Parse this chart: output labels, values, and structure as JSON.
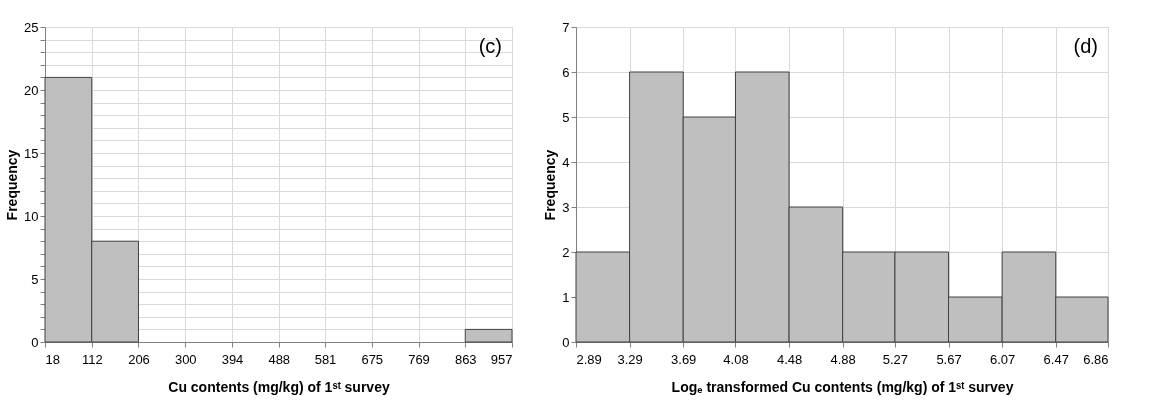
{
  "chart_data": [
    {
      "type": "histogram",
      "xlabel": "Cu contents (mg/kg) of 1ˢᵗ survey",
      "ylabel": "Frequency",
      "annotations": [
        "(c)"
      ],
      "bins": [
        18,
        112,
        206,
        300,
        394,
        488,
        581,
        675,
        769,
        863,
        957
      ],
      "values": [
        21,
        8,
        0,
        0,
        0,
        0,
        0,
        0,
        0,
        1
      ],
      "color": "#bfbfbf",
      "xlim": [
        18,
        957
      ],
      "xticks": [
        18,
        112,
        206,
        300,
        394,
        488,
        581,
        675,
        769,
        863,
        957
      ],
      "ylim": [
        0,
        25
      ],
      "yticks": [
        0,
        {
          "value": 1,
          "label": null
        },
        {
          "value": 2,
          "label": null
        },
        {
          "value": 3,
          "label": null
        },
        {
          "value": 4,
          "label": null
        },
        5,
        {
          "value": 6,
          "label": null
        },
        {
          "value": 7,
          "label": null
        },
        {
          "value": 8,
          "label": null
        },
        {
          "value": 9,
          "label": null
        },
        10,
        {
          "value": 11,
          "label": null
        },
        {
          "value": 12,
          "label": null
        },
        {
          "value": 13,
          "label": null
        },
        {
          "value": 14,
          "label": null
        },
        15,
        {
          "value": 16,
          "label": null
        },
        {
          "value": 17,
          "label": null
        },
        {
          "value": 18,
          "label": null
        },
        {
          "value": 19,
          "label": null
        },
        20,
        {
          "value": 21,
          "label": null
        },
        {
          "value": 22,
          "label": null
        },
        {
          "value": 23,
          "label": null
        },
        {
          "value": 24,
          "label": null
        },
        25
      ],
      "grid": true,
      "legend": false
    },
    {
      "type": "histogram",
      "xlabel": "Logₑ transformed Cu contents (mg/kg) of 1ˢᵗ survey",
      "ylabel": "Frequency",
      "annotations": [
        "(d)"
      ],
      "bins": [
        2.89,
        3.29,
        3.69,
        4.08,
        4.48,
        4.88,
        5.27,
        5.67,
        6.07,
        6.47,
        6.86
      ],
      "values": [
        2,
        6,
        5,
        6,
        3,
        2,
        2,
        1,
        2,
        1
      ],
      "color": "#bfbfbf",
      "xlim": [
        2.89,
        6.86
      ],
      "xticks": [
        2.89,
        3.29,
        3.69,
        4.08,
        4.48,
        4.88,
        5.27,
        5.67,
        6.07,
        6.47,
        6.86
      ],
      "ylim": [
        0,
        7
      ],
      "yticks": [
        0,
        1,
        2,
        3,
        4,
        5,
        6,
        7
      ],
      "grid": true,
      "legend": false
    }
  ]
}
